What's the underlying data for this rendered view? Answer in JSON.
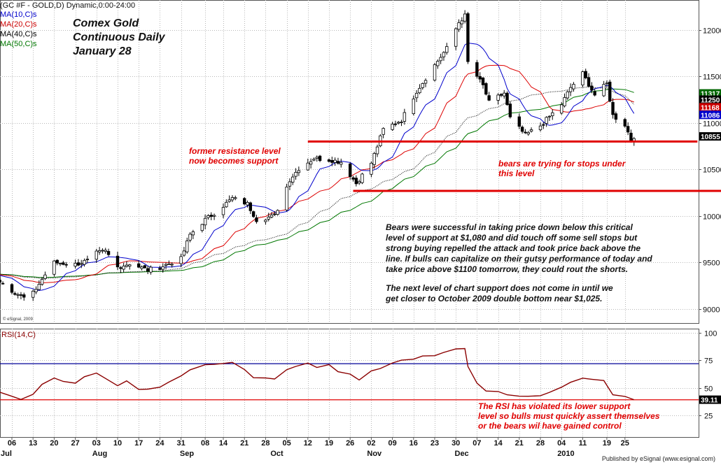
{
  "header": {
    "symbol_line": "(GC #F - GOLD,D) Dynamic,0:00-24:00",
    "ma_labels": [
      {
        "text": "MA(10,C)s",
        "color": "#0000cc"
      },
      {
        "text": "MA(20,C)s",
        "color": "#cc0000"
      },
      {
        "text": "MA(40,C)s",
        "color": "#000000"
      },
      {
        "text": "MA(50,C)s",
        "color": "#007700"
      }
    ]
  },
  "title_lines": [
    "Comex Gold",
    "Continuous Daily",
    "January 28"
  ],
  "annotations": {
    "resistance": [
      "former resistance level",
      "now becomes support"
    ],
    "stops": [
      "bears are trying for stops under",
      "this level"
    ],
    "commentary_1": [
      "Bears were successful in taking price down below this critical",
      "level of support  at $1,080 and did touch off some sell stops but",
      "strong buying repelled the attack and took price back above the",
      "line. If bulls can capitalize on their gutsy performance of today and",
      "take price above $1100 tomorrow, they could rout the shorts."
    ],
    "commentary_2": [
      "The next level of chart support does not come in until we",
      "get closer to October 2009 double bottom near $1,025."
    ],
    "rsi_note": [
      "The RSI has violated its lower support",
      "level so bulls must quickly assert themselves",
      "or the bears wil have gained control"
    ]
  },
  "watermark": "© eSignal, 2009",
  "credit": "Published by eSignal (www.esignal.com)",
  "colors": {
    "ma10": "#0000cc",
    "ma20": "#dd0000",
    "ma40": "#000000",
    "ma50": "#007700",
    "annotation": "#e00000",
    "rsi_line": "#8b0000",
    "rsi_band": "#000099",
    "support_line": "#e00000"
  },
  "chart_data": [
    {
      "type": "candlestick",
      "title": "Comex Gold Continuous Daily",
      "ylim": [
        8850,
        12320
      ],
      "y_ticks": [
        9000,
        9500,
        10000,
        10500,
        11000,
        11500,
        12000
      ],
      "y_tick_labels": [
        "9000",
        "9500",
        "10000",
        "10500",
        "11000",
        "11500",
        "12000"
      ],
      "grid": true,
      "x_tick_labels": [
        "06",
        "13",
        "20",
        "27",
        "03",
        "10",
        "17",
        "24",
        "31",
        "08",
        "14",
        "21",
        "28",
        "05",
        "12",
        "19",
        "26",
        "02",
        "09",
        "16",
        "23",
        "30",
        "07",
        "14",
        "21",
        "28",
        "04",
        "11",
        "19",
        "25"
      ],
      "x_tick_dates": [
        "2009-07-06",
        "2009-07-13",
        "2009-07-20",
        "2009-07-27",
        "2009-08-03",
        "2009-08-10",
        "2009-08-17",
        "2009-08-24",
        "2009-08-31",
        "2009-09-08",
        "2009-09-14",
        "2009-09-21",
        "2009-09-28",
        "2009-10-05",
        "2009-10-12",
        "2009-10-19",
        "2009-10-26",
        "2009-11-02",
        "2009-11-09",
        "2009-11-16",
        "2009-11-23",
        "2009-11-30",
        "2009-12-07",
        "2009-12-14",
        "2009-12-21",
        "2009-12-28",
        "2010-01-04",
        "2010-01-11",
        "2010-01-19",
        "2010-01-25"
      ],
      "month_labels": [
        {
          "label": "Jul",
          "date": "2009-07-01"
        },
        {
          "label": "Aug",
          "date": "2009-08-03"
        },
        {
          "label": "Sep",
          "date": "2009-09-01"
        },
        {
          "label": "Oct",
          "date": "2009-10-01"
        },
        {
          "label": "Nov",
          "date": "2009-11-02"
        },
        {
          "label": "Dec",
          "date": "2009-12-01"
        },
        {
          "label": "2010",
          "date": "2010-01-04"
        }
      ],
      "close_anchors": [
        [
          "2009-06-29",
          9380
        ],
        [
          "2009-07-06",
          9200
        ],
        [
          "2009-07-10",
          9120
        ],
        [
          "2009-07-13",
          9170
        ],
        [
          "2009-07-17",
          9370
        ],
        [
          "2009-07-20",
          9500
        ],
        [
          "2009-07-27",
          9480
        ],
        [
          "2009-07-31",
          9520
        ],
        [
          "2009-08-03",
          9600
        ],
        [
          "2009-08-06",
          9620
        ],
        [
          "2009-08-10",
          9450
        ],
        [
          "2009-08-14",
          9490
        ],
        [
          "2009-08-20",
          9420
        ],
        [
          "2009-08-24",
          9450
        ],
        [
          "2009-08-31",
          9540
        ],
        [
          "2009-09-03",
          9800
        ],
        [
          "2009-09-08",
          9960
        ],
        [
          "2009-09-11",
          10030
        ],
        [
          "2009-09-17",
          10190
        ],
        [
          "2009-09-22",
          10130
        ],
        [
          "2009-09-25",
          9960
        ],
        [
          "2009-10-01",
          10000
        ],
        [
          "2009-10-06",
          10390
        ],
        [
          "2009-10-09",
          10510
        ],
        [
          "2009-10-14",
          10620
        ],
        [
          "2009-10-20",
          10600
        ],
        [
          "2009-10-23",
          10580
        ],
        [
          "2009-10-28",
          10350
        ],
        [
          "2009-11-02",
          10570
        ],
        [
          "2009-11-06",
          10930
        ],
        [
          "2009-11-12",
          11030
        ],
        [
          "2009-11-17",
          11340
        ],
        [
          "2009-11-23",
          11620
        ],
        [
          "2009-11-27",
          11800
        ],
        [
          "2009-12-01",
          12080
        ],
        [
          "2009-12-03",
          12150
        ],
        [
          "2009-12-04",
          11650
        ],
        [
          "2009-12-09",
          11400
        ],
        [
          "2009-12-11",
          11220
        ],
        [
          "2009-12-16",
          11320
        ],
        [
          "2009-12-18",
          11050
        ],
        [
          "2009-12-23",
          10870
        ],
        [
          "2009-12-28",
          10970
        ],
        [
          "2010-01-04",
          11200
        ],
        [
          "2010-01-07",
          11380
        ],
        [
          "2010-01-11",
          11530
        ],
        [
          "2010-01-15",
          11300
        ],
        [
          "2010-01-19",
          11420
        ],
        [
          "2010-01-21",
          11080
        ],
        [
          "2010-01-25",
          10980
        ],
        [
          "2010-01-27",
          10820
        ],
        [
          "2010-01-28",
          10855
        ]
      ],
      "last_price": "10855",
      "ma_last_values": [
        {
          "series": "MA(50,C)",
          "value": "11317"
        },
        {
          "series": "MA(40,C)",
          "value": "11250"
        },
        {
          "series": "MA(20,C)",
          "value": "11168"
        },
        {
          "series": "MA(10,C)",
          "value": "11086"
        }
      ],
      "support_lines": [
        {
          "label": "former resistance level",
          "value": 10800,
          "from": "2009-10-12",
          "to": "2010-02-18"
        },
        {
          "label": "October 2009 double bottom",
          "value": 10270,
          "from": "2009-10-27",
          "to": "2010-03-01"
        }
      ]
    },
    {
      "type": "line",
      "title": "RSI(14,C)",
      "ylim": [
        5,
        104
      ],
      "y_ticks": [
        25,
        50,
        75,
        100
      ],
      "y_tick_labels": [
        "25",
        "50",
        "75",
        "100"
      ],
      "bands": [
        72,
        39
      ],
      "last_value": "39.11",
      "series": [
        {
          "name": "RSI(14,C)",
          "points": [
            [
              "2009-06-29",
              48
            ],
            [
              "2009-07-02",
              45
            ],
            [
              "2009-07-06",
              42
            ],
            [
              "2009-07-09",
              38
            ],
            [
              "2009-07-13",
              43
            ],
            [
              "2009-07-16",
              52
            ],
            [
              "2009-07-20",
              58
            ],
            [
              "2009-07-23",
              55
            ],
            [
              "2009-07-27",
              55
            ],
            [
              "2009-07-30",
              60
            ],
            [
              "2009-08-03",
              62
            ],
            [
              "2009-08-06",
              60
            ],
            [
              "2009-08-10",
              52
            ],
            [
              "2009-08-13",
              55
            ],
            [
              "2009-08-17",
              48
            ],
            [
              "2009-08-20",
              50
            ],
            [
              "2009-08-24",
              52
            ],
            [
              "2009-08-27",
              55
            ],
            [
              "2009-08-31",
              60
            ],
            [
              "2009-09-03",
              66
            ],
            [
              "2009-09-08",
              72
            ],
            [
              "2009-09-11",
              70
            ],
            [
              "2009-09-14",
              73
            ],
            [
              "2009-09-17",
              72
            ],
            [
              "2009-09-21",
              68
            ],
            [
              "2009-09-24",
              60
            ],
            [
              "2009-09-28",
              60
            ],
            [
              "2009-10-01",
              58
            ],
            [
              "2009-10-05",
              68
            ],
            [
              "2009-10-08",
              70
            ],
            [
              "2009-10-12",
              72
            ],
            [
              "2009-10-15",
              70
            ],
            [
              "2009-10-19",
              70
            ],
            [
              "2009-10-22",
              66
            ],
            [
              "2009-10-26",
              62
            ],
            [
              "2009-10-29",
              58
            ],
            [
              "2009-11-02",
              64
            ],
            [
              "2009-11-05",
              68
            ],
            [
              "2009-11-09",
              72
            ],
            [
              "2009-11-12",
              74
            ],
            [
              "2009-11-16",
              76
            ],
            [
              "2009-11-19",
              78
            ],
            [
              "2009-11-23",
              80
            ],
            [
              "2009-11-26",
              82
            ],
            [
              "2009-11-30",
              84
            ],
            [
              "2009-12-03",
              86
            ],
            [
              "2009-12-04",
              68
            ],
            [
              "2009-12-07",
              54
            ],
            [
              "2009-12-10",
              46
            ],
            [
              "2009-12-14",
              48
            ],
            [
              "2009-12-17",
              45
            ],
            [
              "2009-12-21",
              41
            ],
            [
              "2009-12-24",
              43
            ],
            [
              "2009-12-28",
              42
            ],
            [
              "2009-12-31",
              47
            ],
            [
              "2010-01-04",
              52
            ],
            [
              "2010-01-07",
              56
            ],
            [
              "2010-01-11",
              58
            ],
            [
              "2010-01-14",
              57
            ],
            [
              "2010-01-18",
              56
            ],
            [
              "2010-01-21",
              44
            ],
            [
              "2010-01-25",
              41
            ],
            [
              "2010-01-28",
              39.11
            ]
          ]
        }
      ]
    }
  ]
}
